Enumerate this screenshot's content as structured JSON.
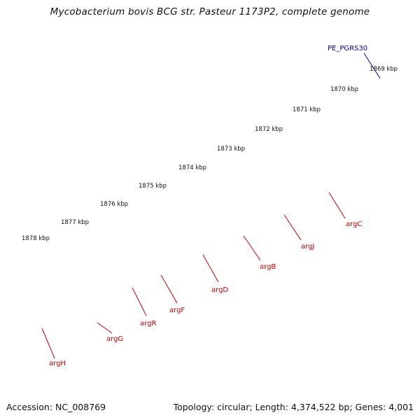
{
  "title": "Mycobacterium bovis BCG str. Pasteur 1173P2, complete genome",
  "footer": {
    "accession": "Accession: NC_008769",
    "summary": "Topology: circular; Length: 4,374,522 bp; Genes: 4,001"
  },
  "colors": {
    "forward_gene": "#ff0000",
    "reverse_gene": "#4a7fb0",
    "highlight_gene": "#ff9900",
    "pe_pgrs": "#0000ff",
    "backbone": "#808080",
    "ticks": "#1a7a1a",
    "gene_label": "#cc0000",
    "pe_label": "#0000aa"
  },
  "kbp_ticks": [
    "1869 kbp",
    "1870 kbp",
    "1871 kbp",
    "1872 kbp",
    "1873 kbp",
    "1874 kbp",
    "1875 kbp",
    "1876 kbp",
    "1877 kbp",
    "1878 kbp"
  ],
  "genes": [
    {
      "name": "argH",
      "color": "reverse_gene"
    },
    {
      "name": "argG",
      "color": "reverse_gene"
    },
    {
      "name": "argR",
      "color": "highlight_gene"
    },
    {
      "name": "argF",
      "color": "reverse_gene"
    },
    {
      "name": "argD",
      "color": "reverse_gene"
    },
    {
      "name": "argB",
      "color": "reverse_gene"
    },
    {
      "name": "argJ",
      "color": "reverse_gene"
    },
    {
      "name": "argC",
      "color": "reverse_gene"
    }
  ],
  "pe_label": "PE_PGRS30"
}
